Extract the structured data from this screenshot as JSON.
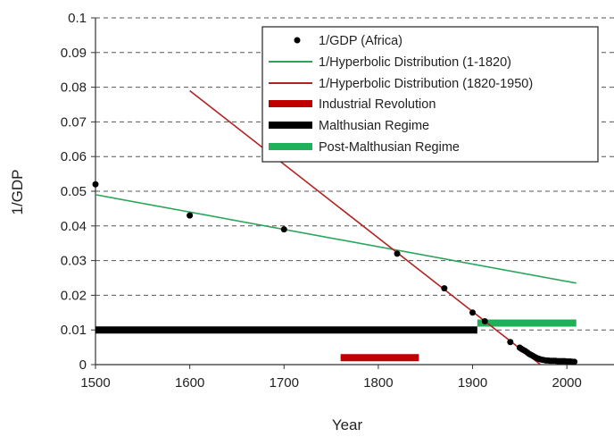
{
  "chart_data": {
    "type": "line",
    "xlabel": "Year",
    "ylabel": "1/GDP",
    "xlim": [
      1500,
      2050
    ],
    "ylim": [
      0,
      0.1
    ],
    "x_ticks": [
      "1500",
      "1600",
      "1700",
      "1800",
      "1900",
      "2000"
    ],
    "y_ticks": [
      "0",
      "0.01",
      "0.02",
      "0.03",
      "0.04",
      "0.05",
      "0.06",
      "0.07",
      "0.08",
      "0.09",
      "0.1"
    ],
    "grid": "horizontal dashed",
    "legend_position": "top-right",
    "scatter_series": {
      "name": "1/GDP (Africa)",
      "color": "#000000",
      "x": [
        1500,
        1600,
        1700,
        1820,
        1870,
        1900,
        1913,
        1940,
        1950,
        1952,
        1954,
        1956,
        1958,
        1960,
        1962,
        1964,
        1966,
        1968,
        1970,
        1972,
        1974,
        1976,
        1978,
        1980,
        1982,
        1984,
        1986,
        1988,
        1990,
        1992,
        1994,
        1996,
        1998,
        2000,
        2002,
        2004,
        2006,
        2008
      ],
      "y": [
        0.052,
        0.043,
        0.039,
        0.032,
        0.022,
        0.015,
        0.0125,
        0.0065,
        0.0049,
        0.0045,
        0.0042,
        0.0039,
        0.0035,
        0.0031,
        0.0028,
        0.0025,
        0.0022,
        0.0019,
        0.0017,
        0.0015,
        0.0014,
        0.0013,
        0.0012,
        0.0012,
        0.0011,
        0.0011,
        0.0011,
        0.0011,
        0.001,
        0.001,
        0.001,
        0.001,
        0.001,
        0.0009,
        0.0009,
        0.0009,
        0.0008,
        0.0008
      ]
    },
    "line_series": [
      {
        "name": "1/Hyperbolic Distribution (1-1820)",
        "color": "#2aa65a",
        "x": [
          1500,
          2010
        ],
        "y": [
          0.049,
          0.0235
        ]
      },
      {
        "name": "1/Hyperbolic Distribution (1820-1950)",
        "color": "#b22222",
        "x": [
          1600,
          1972
        ],
        "y": [
          0.079,
          0.0
        ]
      }
    ],
    "band_series": [
      {
        "name": "Industrial Revolution",
        "color": "#c00000",
        "x_start": 1760,
        "x_end": 1843,
        "y": 0.002
      },
      {
        "name": "Malthusian Regime",
        "color": "#000000",
        "x_start": 1500,
        "x_end": 1905,
        "y": 0.01
      },
      {
        "name": "Post-Malthusian Regime",
        "color": "#1fb05a",
        "x_start": 1905,
        "x_end": 2010,
        "y": 0.012
      }
    ]
  }
}
